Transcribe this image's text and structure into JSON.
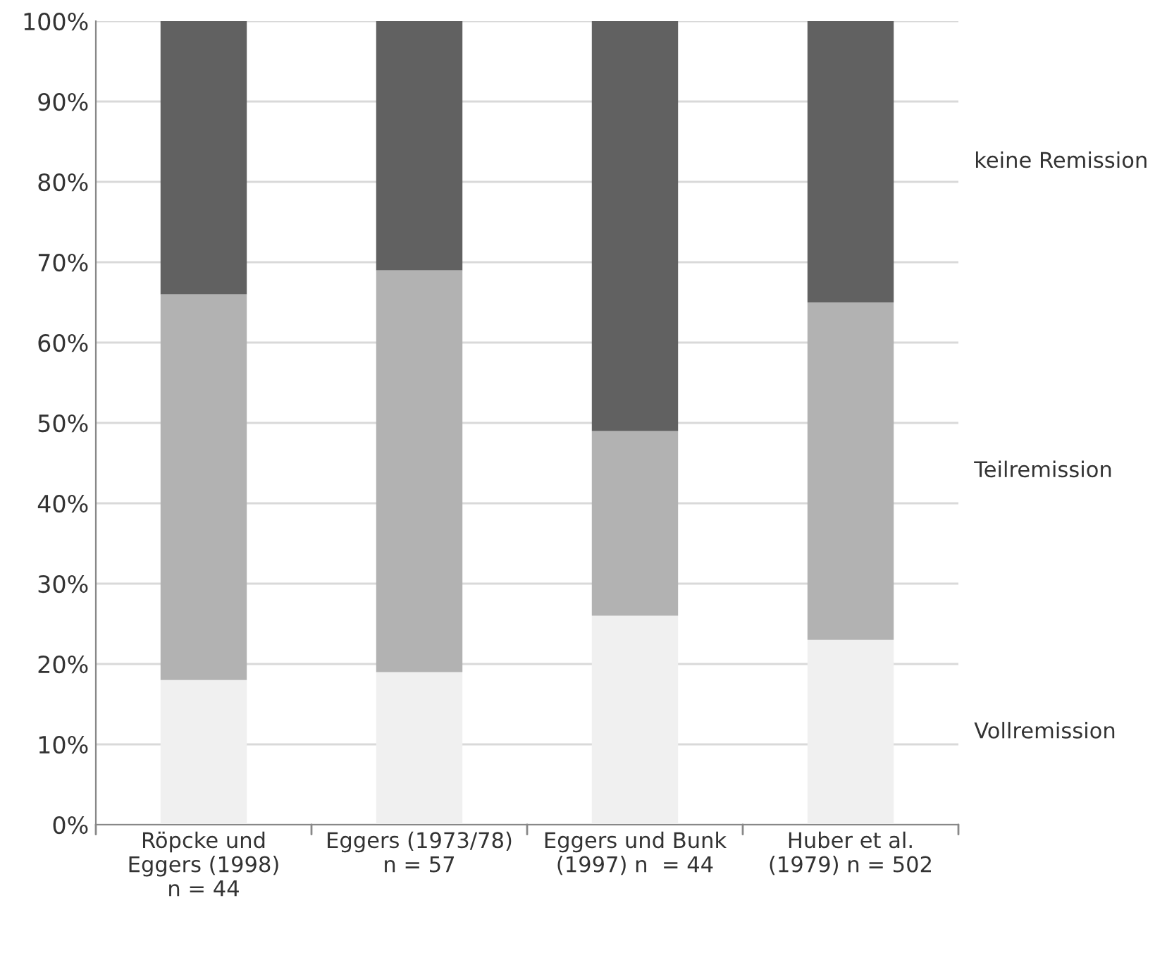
{
  "chart_data": {
    "type": "bar",
    "stacked": true,
    "categories": [
      "Röpcke und\nEggers (1998)\nn = 44",
      "Eggers (1973/78)\nn = 57",
      "Eggers und Bunk\n(1997) n  = 44",
      "Huber et al.\n(1979) n = 502"
    ],
    "series": [
      {
        "name": "Vollremission",
        "color": "#f0f0f0",
        "values": [
          18,
          19,
          26,
          23
        ]
      },
      {
        "name": "Teilremission",
        "color": "#b2b2b2",
        "values": [
          48,
          50,
          23,
          42
        ]
      },
      {
        "name": "keine Remission",
        "color": "#616161",
        "values": [
          34,
          31,
          51,
          35
        ]
      }
    ],
    "ylim": [
      0,
      100
    ],
    "yticks": [
      {
        "value": 0,
        "label": "0%"
      },
      {
        "value": 10,
        "label": "10%"
      },
      {
        "value": 20,
        "label": "20%"
      },
      {
        "value": 30,
        "label": "30%"
      },
      {
        "value": 40,
        "label": "40%"
      },
      {
        "value": 50,
        "label": "50%"
      },
      {
        "value": 60,
        "label": "60%"
      },
      {
        "value": 70,
        "label": "70%"
      },
      {
        "value": 80,
        "label": "80%"
      },
      {
        "value": 90,
        "label": "90%"
      },
      {
        "value": 100,
        "label": "100%"
      }
    ],
    "grid": "y",
    "legend": "right"
  }
}
